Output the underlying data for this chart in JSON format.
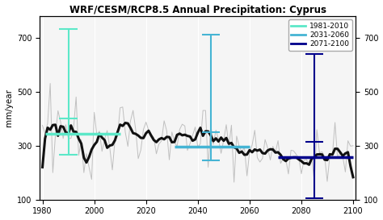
{
  "title": "WRF/CESM/RCP8.5 Annual Precipitation: Cyprus",
  "ylabel": "mm/year",
  "xlim": [
    1979,
    2101
  ],
  "ylim": [
    100,
    780
  ],
  "yticks": [
    100,
    300,
    500,
    700
  ],
  "xticks": [
    1980,
    2000,
    2020,
    2040,
    2060,
    2080,
    2100
  ],
  "period1": {
    "label": "1981-2010",
    "color": "#5ce8c8",
    "mean": 345,
    "err_low": 265,
    "err_high": 730,
    "x_err": 1990,
    "x_start": 1981,
    "x_end": 2010
  },
  "period2": {
    "label": "2031-2060",
    "color": "#45b4d4",
    "mean": 295,
    "err_low": 245,
    "err_high": 710,
    "x_err": 2045,
    "x_start": 2031,
    "x_end": 2060
  },
  "period3": {
    "label": "2071-2100",
    "color": "#00008b",
    "mean": 258,
    "err_low": 105,
    "err_high": 640,
    "x_err": 2085,
    "x_start": 2071,
    "x_end": 2100
  },
  "background_color": "#ffffff",
  "plot_bg_color": "#f5f5f5",
  "annual_color": "#c0c0c0",
  "moving_avg_color": "#111111",
  "seed": 42
}
